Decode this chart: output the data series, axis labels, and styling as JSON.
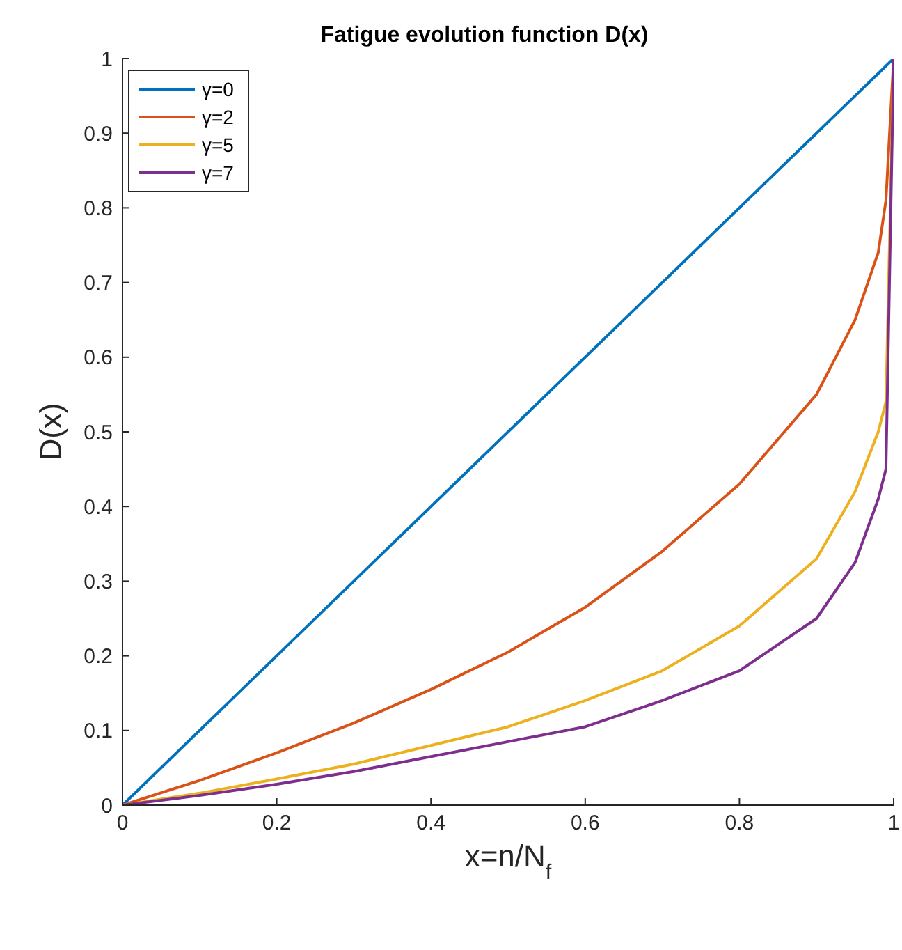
{
  "chart_data": {
    "type": "line",
    "title": "Fatigue evolution function D(x)",
    "xlabel": "x=n/N$_{f}$",
    "ylabel": "D(x)",
    "x": [
      0,
      0.1,
      0.2,
      0.3,
      0.4,
      0.5,
      0.6,
      0.7,
      0.8,
      0.9,
      0.95,
      0.98,
      0.99,
      1
    ],
    "series": [
      {
        "name": "γ=0",
        "color": "#0072bd",
        "values": [
          0,
          0.1,
          0.2,
          0.3,
          0.4,
          0.5,
          0.6,
          0.7,
          0.8,
          0.9,
          0.95,
          0.98,
          0.99,
          1
        ]
      },
      {
        "name": "γ=2",
        "color": "#d95319",
        "values": [
          0,
          0.033,
          0.07,
          0.11,
          0.155,
          0.205,
          0.265,
          0.34,
          0.43,
          0.55,
          0.65,
          0.74,
          0.81,
          1
        ]
      },
      {
        "name": "γ=5",
        "color": "#edb120",
        "values": [
          0,
          0.016,
          0.035,
          0.055,
          0.08,
          0.105,
          0.14,
          0.18,
          0.24,
          0.33,
          0.42,
          0.5,
          0.54,
          1
        ]
      },
      {
        "name": "γ=7",
        "color": "#7e2f8e",
        "values": [
          0,
          0.013,
          0.028,
          0.045,
          0.065,
          0.085,
          0.105,
          0.14,
          0.18,
          0.25,
          0.325,
          0.41,
          0.45,
          1
        ]
      }
    ],
    "xlim": [
      0,
      1
    ],
    "xticks": [
      0,
      0.2,
      0.4,
      0.6,
      0.8,
      1
    ],
    "ylim": [
      0,
      1
    ],
    "yticks": [
      0,
      0.1,
      0.2,
      0.3,
      0.4,
      0.5,
      0.6,
      0.7,
      0.8,
      0.9,
      1
    ],
    "grid": false,
    "legend": "top left",
    "marker": "none",
    "line_style": "solid"
  }
}
